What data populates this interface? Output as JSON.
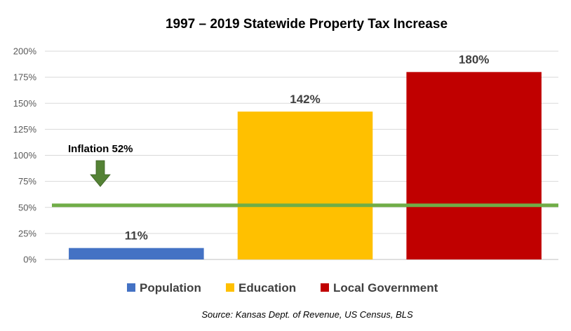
{
  "chart_data": {
    "type": "bar",
    "title": "1997 – 2019 Statewide Property Tax Increase",
    "categories": [
      "Population",
      "Education",
      "Local Government"
    ],
    "values": [
      11,
      142,
      180
    ],
    "data_labels": [
      "11%",
      "142%",
      "180%"
    ],
    "colors": [
      "#4472c4",
      "#ffc000",
      "#c00000"
    ],
    "ylim": [
      0,
      200
    ],
    "yticks": [
      0,
      25,
      50,
      75,
      100,
      125,
      150,
      175,
      200
    ],
    "ytick_labels": [
      "0%",
      "25%",
      "50%",
      "75%",
      "100%",
      "125%",
      "150%",
      "175%",
      "200%"
    ],
    "grid": true,
    "legend": {
      "position": "bottom",
      "entries": [
        "Population",
        "Education",
        "Local Government"
      ]
    },
    "reference_line": {
      "value": 52,
      "label": "Inflation 52%",
      "color": "#70ad47"
    },
    "arrow_color": "#548235",
    "source": "Source: Kansas Dept. of Revenue, US Census, BLS"
  }
}
